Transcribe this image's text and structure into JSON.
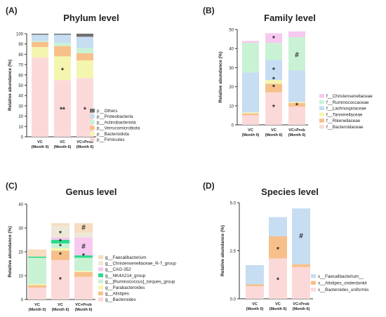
{
  "chart_data": [
    {
      "type": "bar",
      "stacked": true,
      "panel_label": "(A)",
      "title": "Phylum level",
      "ylabel": "Relative abundance (%)",
      "ylim": [
        0,
        100
      ],
      "yticks": [
        0,
        10,
        20,
        30,
        40,
        50,
        60,
        70,
        80,
        90,
        100
      ],
      "categories": [
        [
          "VC",
          "(Month 0)"
        ],
        [
          "VC",
          "(Month 6)"
        ],
        [
          "VC+Prob",
          "(Month 6)"
        ]
      ],
      "legend_position": "right",
      "series": [
        {
          "name": "p__Firmicutes",
          "color": "#fcd9d9",
          "values": [
            77,
            55,
            57
          ]
        },
        {
          "name": "p__Bacteroidota",
          "color": "#f4f6b0",
          "values": [
            10,
            23,
            17
          ]
        },
        {
          "name": "p__Verrucomicrobiota",
          "color": "#f7c08a",
          "values": [
            5,
            10,
            7
          ]
        },
        {
          "name": "p__Actinobacteriota",
          "color": "#c9f2d4",
          "values": [
            1,
            3,
            5
          ]
        },
        {
          "name": "p__Proteobacteria",
          "color": "#c6ddf2",
          "values": [
            6,
            8,
            11
          ]
        },
        {
          "name": "p__Others",
          "color": "#707070",
          "values": [
            1,
            1,
            3
          ]
        }
      ],
      "annotations": [
        {
          "category": 1,
          "y": 65,
          "text": "*"
        },
        {
          "category": 1,
          "y": 27,
          "text": "**"
        },
        {
          "category": 2,
          "y": 27,
          "text": "*"
        }
      ]
    },
    {
      "type": "bar",
      "stacked": true,
      "panel_label": "(B)",
      "title": "Family level",
      "ylabel": "Relative abundance (%)",
      "ylim": [
        0,
        50
      ],
      "yticks": [
        0,
        10,
        20,
        30,
        40,
        50
      ],
      "categories": [
        [
          "VC",
          "(Month 0)"
        ],
        [
          "VC",
          "(Month 6)"
        ],
        [
          "VC+Prob",
          "(Month 6)"
        ]
      ],
      "legend_position": "right",
      "series": [
        {
          "name": "f__Bacteroidaceae",
          "color": "#fcd9d9",
          "values": [
            5,
            17,
            9.5
          ]
        },
        {
          "name": "f__Rikenellaceae",
          "color": "#f7c08a",
          "values": [
            1,
            4.5,
            2
          ]
        },
        {
          "name": "f__Tannerellaceae",
          "color": "#f4f6b0",
          "values": [
            0.5,
            2,
            0.5
          ]
        },
        {
          "name": "f__Lachnospiraceae",
          "color": "#c6ddf2",
          "values": [
            21,
            10.5,
            16.5
          ]
        },
        {
          "name": "f__Ruminococcaceae",
          "color": "#c9f2d4",
          "values": [
            15.5,
            9,
            17.5
          ]
        },
        {
          "name": "f__Christensenellaceae",
          "color": "#f7c8f0",
          "values": [
            1,
            5,
            3
          ]
        }
      ],
      "annotations": [
        {
          "category": 1,
          "y": 45.5,
          "text": "*"
        },
        {
          "category": 1,
          "y": 29,
          "text": "*"
        },
        {
          "category": 1,
          "y": 24,
          "text": "*"
        },
        {
          "category": 1,
          "y": 20,
          "text": "*"
        },
        {
          "category": 1,
          "y": 9.5,
          "text": "*"
        },
        {
          "category": 2,
          "y": 37,
          "text": "#"
        },
        {
          "category": 2,
          "y": 10.5,
          "text": "*"
        }
      ]
    },
    {
      "type": "bar",
      "stacked": true,
      "panel_label": "(C)",
      "title": "Genus level",
      "ylabel": "Relative abundance (%)",
      "ylim": [
        0,
        40
      ],
      "yticks": [
        0,
        10,
        20,
        30,
        40
      ],
      "categories": [
        [
          "VC",
          "(Month 0)"
        ],
        [
          "VC",
          "(Month 6)"
        ],
        [
          "VC+Prob",
          "(Month 6)"
        ]
      ],
      "legend_position": "right",
      "series": [
        {
          "name": "g__Bacteroides",
          "color": "#fcd9d9",
          "values": [
            5,
            16.5,
            9.5
          ]
        },
        {
          "name": "g__Alistipes",
          "color": "#f7c08a",
          "values": [
            1,
            4,
            2
          ]
        },
        {
          "name": "g__Parabacteroides",
          "color": "#f4f6b0",
          "values": [
            0.5,
            1,
            0.5
          ]
        },
        {
          "name": "g__[Ruminococcus]_torques_group",
          "color": "#c9f2d4",
          "values": [
            11,
            2,
            5.5
          ]
        },
        {
          "name": "g__NK4A214_group",
          "color": "#2fd98a",
          "values": [
            0.5,
            1.5,
            1
          ]
        },
        {
          "name": "g__CAG-352",
          "color": "#f7c8f0",
          "values": [
            0,
            1,
            7.5
          ]
        },
        {
          "name": "g__Christensenellaceae_R-7_group",
          "color": "#eee8d8",
          "values": [
            0,
            5,
            2
          ]
        },
        {
          "name": "g__Faecalibacterium",
          "color": "#f7dcc0",
          "values": [
            3,
            1,
            4
          ]
        }
      ],
      "annotations": [
        {
          "category": 1,
          "y": 28,
          "text": "*"
        },
        {
          "category": 1,
          "y": 24.5,
          "text": "*"
        },
        {
          "category": 1,
          "y": 22.5,
          "text": "*"
        },
        {
          "category": 1,
          "y": 19,
          "text": "*"
        },
        {
          "category": 1,
          "y": 8.5,
          "text": "*"
        },
        {
          "category": 2,
          "y": 30.5,
          "text": "#"
        },
        {
          "category": 2,
          "y": 22.5,
          "text": "#"
        },
        {
          "category": 2,
          "y": 18.5,
          "text": "*"
        }
      ]
    },
    {
      "type": "bar",
      "stacked": true,
      "panel_label": "(D)",
      "title": "Species level",
      "ylabel": "Relative abundance (%)",
      "ylim": [
        0,
        5
      ],
      "yticks": [
        0,
        2.5,
        5
      ],
      "yticklabels": [
        "0.0",
        "2.5",
        "5.0"
      ],
      "categories": [
        [
          "VC",
          "(Month 0)"
        ],
        [
          "VC",
          "(Month 6)"
        ],
        [
          "VC+Prob",
          "(Month 6)"
        ]
      ],
      "legend_position": "right",
      "series": [
        {
          "name": "s__Bacteroides_uniformis",
          "color": "#fcd9d9",
          "values": [
            0.65,
            2.1,
            1.65
          ]
        },
        {
          "name": "s__Alistipes_onderdonkii",
          "color": "#f7c08a",
          "values": [
            0.1,
            1.15,
            0.15
          ]
        },
        {
          "name": "s__Faecalibacterium__",
          "color": "#c6ddf2",
          "values": [
            1.0,
            1.0,
            2.9
          ]
        }
      ],
      "annotations": [
        {
          "category": 1,
          "y": 2.6,
          "text": "*"
        },
        {
          "category": 1,
          "y": 1.0,
          "text": "*"
        },
        {
          "category": 2,
          "y": 3.3,
          "text": "#"
        }
      ]
    }
  ]
}
